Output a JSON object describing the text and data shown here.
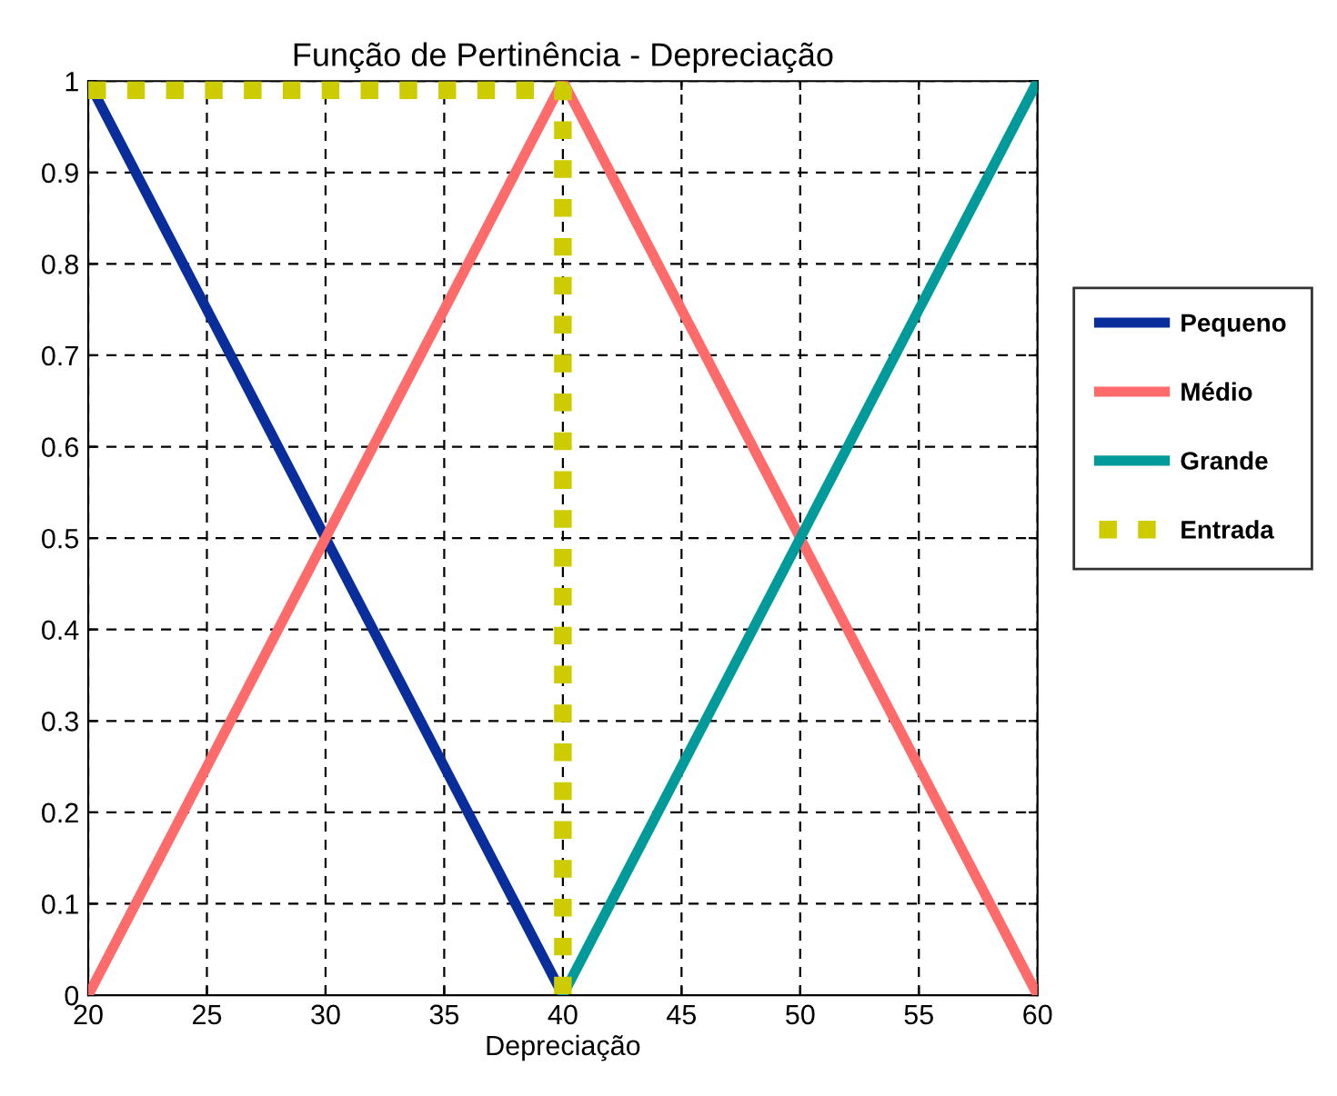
{
  "chart_data": {
    "type": "line",
    "title": "Função de Pertinência - Depreciação",
    "xlabel": "Depreciação",
    "xlim": [
      20,
      60
    ],
    "xticks": [
      20,
      25,
      30,
      35,
      40,
      45,
      50,
      55,
      60
    ],
    "ylim": [
      0,
      1
    ],
    "yticks": [
      0,
      0.1,
      0.2,
      0.3,
      0.4,
      0.5,
      0.6,
      0.7,
      0.8,
      0.9,
      1
    ],
    "grid": true,
    "legend": "right",
    "series": [
      {
        "name": "Pequeno",
        "color": "#0a2d9c",
        "x": [
          20,
          40
        ],
        "values": [
          1,
          0
        ],
        "line_style": "solid"
      },
      {
        "name": "Médio",
        "color": "#ff6b6b",
        "x": [
          20,
          40,
          60
        ],
        "values": [
          0,
          1,
          0
        ],
        "line_style": "solid"
      },
      {
        "name": "Grande",
        "color": "#009a9a",
        "x": [
          40,
          60
        ],
        "values": [
          0,
          1
        ],
        "line_style": "solid"
      },
      {
        "name": "Entrada",
        "color": "#cccc00",
        "x": [
          20,
          40,
          40
        ],
        "values": [
          0.99,
          0.99,
          0
        ],
        "line_style": "dotted"
      }
    ]
  }
}
